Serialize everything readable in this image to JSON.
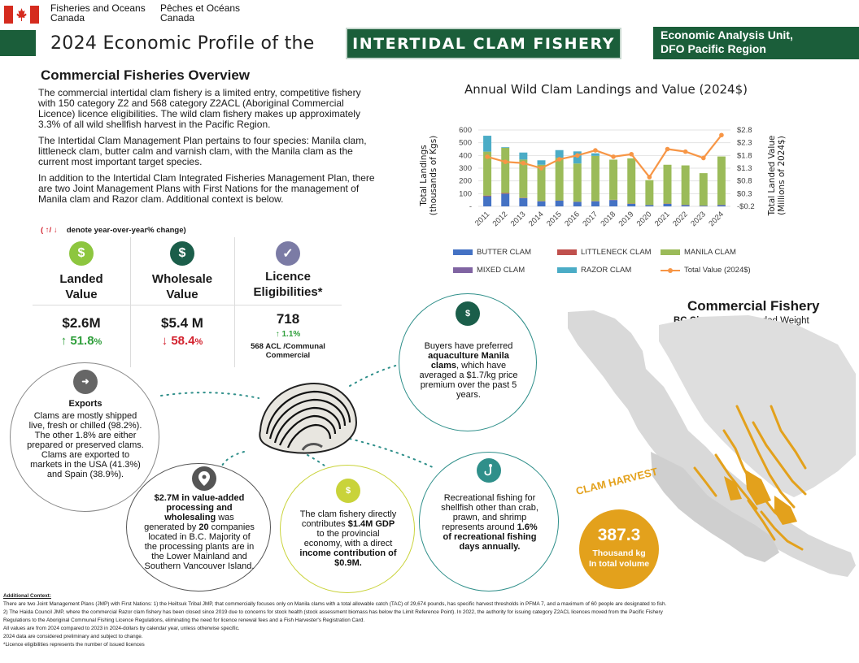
{
  "header": {
    "dept_en_line1": "Fisheries and Oceans",
    "dept_en_line2": "Canada",
    "dept_fr_line1": "Pêches et Océans",
    "dept_fr_line2": "Canada",
    "title_prefix": "2024 Economic Profile of the",
    "fishery_name": "INTERTIDAL CLAM FISHERY",
    "unit_line1": "Economic Analysis Unit,",
    "unit_line2": "DFO Pacific Region"
  },
  "overview": {
    "title": "Commercial Fisheries Overview",
    "para1": "The commercial intertidal clam fishery is a limited entry, competitive fishery with 150 category Z2 and 568 category Z2ACL (Aboriginal Commercial Licence) licence eligibilities. The wild clam fishery makes up approximately 3.3% of all wild shellfish harvest in the Pacific Region.",
    "para2": "The Intertidal Clam Management Plan pertains to four species: Manila clam, littleneck clam, butter calm and varnish clam, with the Manila clam as the current most important target species.",
    "para3": "In addition to the Intertidal Clam Integrated Fisheries Management Plan, there are two Joint Management Plans with First Nations for the management of Manila clam and Razor clam. Additional context is below.",
    "denote_arrows": "( ↑/ ↓",
    "denote_text": "denote year-over-year% change)"
  },
  "kpis": [
    {
      "icon": "$",
      "label_line1": "Landed",
      "label_line2": "Value",
      "value": "$2.6M",
      "arrow": "↑",
      "change": "51.8",
      "pct": "%",
      "color": "#8dc63f"
    },
    {
      "icon": "$",
      "label_line1": "Wholesale",
      "label_line2": "Value",
      "value": "$5.4 M",
      "arrow": "↓",
      "change": "58.4",
      "pct": "%",
      "color": "#1b5e4a"
    },
    {
      "icon": "✓",
      "label_line1": "Licence",
      "label_line2": "Eligibilities*",
      "value": "718",
      "arrow": "↑",
      "change": "1.1",
      "pct": "%",
      "note": "568 ACL /Communal Commercial",
      "color": "#7b7ba5"
    }
  ],
  "chart_data": {
    "type": "bar",
    "title": "Annual Wild Clam Landings and Value (2024$)",
    "ylabel_line1": "Total Landings",
    "ylabel_line2": "(thousands of Kgs)",
    "y2label_line1": "Total Landed Value",
    "y2label_line2": "(Millions of 2024$)",
    "ylim": [
      0,
      600
    ],
    "y2lim": [
      -0.2,
      2.8
    ],
    "y_ticks": [
      "-",
      "100",
      "200",
      "300",
      "400",
      "500",
      "600"
    ],
    "y2_ticks": [
      "-$0.2",
      "$0.3",
      "$0.8",
      "$1.3",
      "$1.8",
      "$2.3",
      "$2.8"
    ],
    "categories": [
      "2011",
      "2012",
      "2013",
      "2014",
      "2015",
      "2016",
      "2017",
      "2018",
      "2019",
      "2020",
      "2021",
      "2022",
      "2023",
      "2024"
    ],
    "series": [
      {
        "name": "BUTTER CLAM",
        "color": "#4472c4",
        "values": [
          80,
          100,
          65,
          40,
          45,
          35,
          40,
          50,
          20,
          10,
          20,
          10,
          5,
          10
        ]
      },
      {
        "name": "LITTLENECK CLAM",
        "color": "#c0504d",
        "values": [
          5,
          5,
          3,
          2,
          2,
          2,
          2,
          2,
          2,
          1,
          2,
          2,
          1,
          2
        ]
      },
      {
        "name": "MANILA CLAM",
        "color": "#9bbb59",
        "values": [
          345,
          355,
          300,
          285,
          335,
          300,
          355,
          315,
          355,
          195,
          305,
          310,
          255,
          380
        ]
      },
      {
        "name": "MIXED CLAM",
        "color": "#8064a2",
        "values": [
          0,
          0,
          0,
          0,
          0,
          0,
          0,
          0,
          0,
          0,
          0,
          0,
          0,
          0
        ]
      },
      {
        "name": "RAZOR CLAM",
        "color": "#4bacc6",
        "values": [
          125,
          5,
          55,
          35,
          60,
          95,
          20,
          0,
          0,
          0,
          0,
          0,
          0,
          0
        ]
      }
    ],
    "line_series": {
      "name": "Total Value (2024$)",
      "color": "#f79646",
      "values": [
        1.75,
        1.55,
        1.5,
        1.3,
        1.65,
        1.8,
        2.0,
        1.75,
        1.85,
        0.95,
        2.05,
        1.95,
        1.7,
        2.6
      ]
    }
  },
  "circles": {
    "exports_title": "Exports",
    "exports_text": "Clams are mostly shipped live, fresh or chilled (98.2%). The other 1.8% are either prepared or preserved clams. Clams are exported to markets in the USA (41.3%) and Spain (38.9%).",
    "buyers_pre": "Buyers have preferred ",
    "buyers_bold": "aquaculture Manila clams",
    "buyers_post": ", which have averaged a $1.7/kg price premium over the past 5 years.",
    "value_added_bold1": "$2.7M in value-added processing and wholesaling",
    "value_added_mid": " was generated by ",
    "value_added_bold2": "20",
    "value_added_post": " companies located in B.C. Majority of the processing plants are in the Lower Mainland and Southern Vancouver Island.",
    "gdp_pre": "The clam fishery directly contributes ",
    "gdp_bold1": "$1.4M GDP",
    "gdp_mid": " to the provincial economy, with a direct ",
    "gdp_bold2": "income contribution of $0.9M.",
    "rec_pre": "Recreational fishing for shellfish other than crab, prawn, and shrimp represents around ",
    "rec_bold": "1.6% of recreational fishing days annually."
  },
  "map": {
    "title": "Commercial Fishery",
    "sub_bold": "BC Clam",
    "sub_rest": " – 2024 Landed Weight",
    "harvest_label": "CLAM HARVEST",
    "harvest_value": "387.3",
    "harvest_unit_line1": "Thousand kg",
    "harvest_unit_line2": "In total volume"
  },
  "footer": {
    "title": "Additional Context:",
    "line1": "There are two Joint Management Plans (JMP) with First Nations: 1) the Heiltsuk Tribal JMP, that commercially focuses only on Manila clams with a total allowable catch (TAC) of 29,674 pounds, has specific harvest thresholds in PFMA 7, and a maximum of 60 people are designated to fish.",
    "line2": "2) The Haida Council JMP, where the commercial Razor clam fishery has been closed since 2019 due to concerns for stock health (stock assessment biomass has below the Limit Reference Point). In 2022, the authority for issuing category Z2ACL licences moved from the Pacific Fishery",
    "line3": "Regulations to the Aboriginal Communal Fishing Licence Regulations, eliminating the need for licence renewal fees and a Fish Harvester's Registration Card.",
    "line4": "All values are from 2024 compared to 2023 in 2024-dollars by calendar year, unless otherwise specific.",
    "line5": "2024 data are considered preliminary and subject to change.",
    "line6": "*Licence eligibilities represents the number of issued licences"
  }
}
